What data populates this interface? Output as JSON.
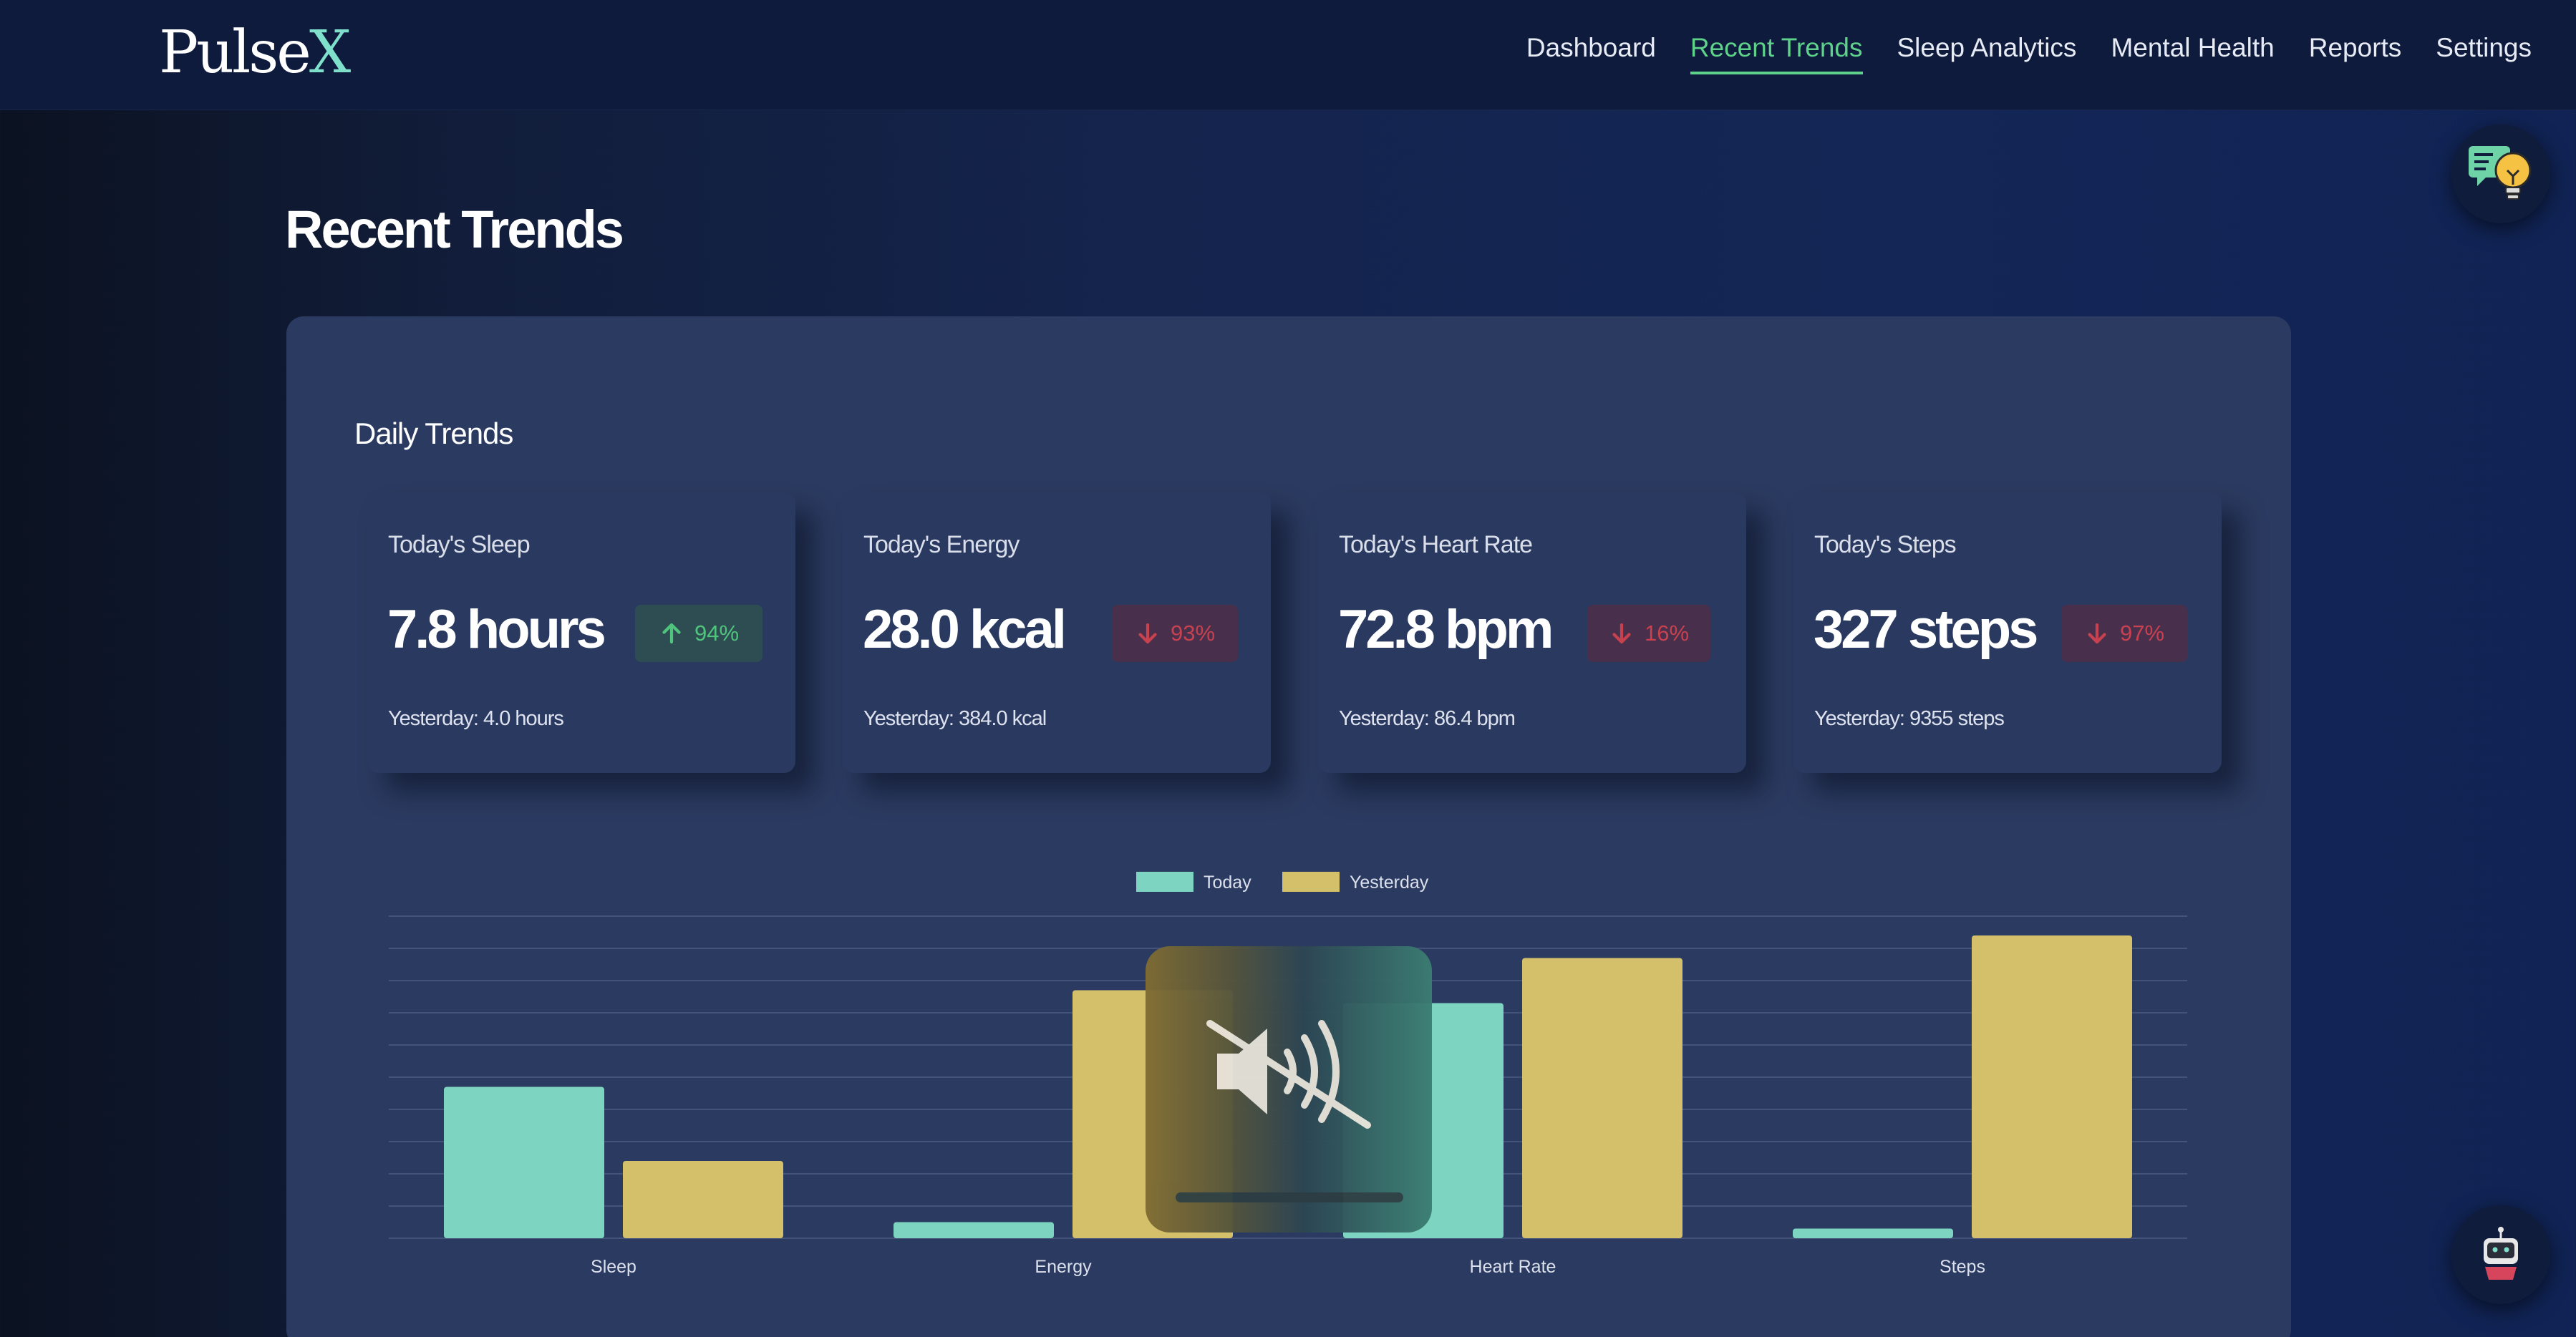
{
  "app": {
    "logo": {
      "main": "Pulse",
      "accent": "X"
    },
    "nav": [
      {
        "label": "Dashboard",
        "active": false
      },
      {
        "label": "Recent Trends",
        "active": true
      },
      {
        "label": "Sleep Analytics",
        "active": false
      },
      {
        "label": "Mental Health",
        "active": false
      },
      {
        "label": "Reports",
        "active": false
      },
      {
        "label": "Settings",
        "active": false
      }
    ]
  },
  "page": {
    "title": "Recent Trends",
    "section_title": "Daily Trends"
  },
  "cards": [
    {
      "label": "Today's Sleep",
      "value": "7.8 hours",
      "change": "94%",
      "direction": "up",
      "yesterday": "Yesterday: 4.0 hours"
    },
    {
      "label": "Today's Energy",
      "value": "28.0 kcal",
      "change": "93%",
      "direction": "down",
      "yesterday": "Yesterday: 384.0 kcal"
    },
    {
      "label": "Today's Heart Rate",
      "value": "72.8 bpm",
      "change": "16%",
      "direction": "down",
      "yesterday": "Yesterday: 86.4 bpm"
    },
    {
      "label": "Today's Steps",
      "value": "327 steps",
      "change": "97%",
      "direction": "down",
      "yesterday": "Yesterday: 9355 steps"
    }
  ],
  "chart_data": {
    "type": "bar",
    "title": "",
    "categories": [
      "Sleep",
      "Energy",
      "Heart Rate",
      "Steps"
    ],
    "series": [
      {
        "name": "Today",
        "color": "#7dd5c1",
        "values": [
          47,
          5,
          73,
          3
        ]
      },
      {
        "name": "Yesterday",
        "color": "#d4c06a",
        "values": [
          24,
          77,
          87,
          94
        ]
      }
    ],
    "ylim": [
      0,
      100
    ],
    "grid": true,
    "legend": "top-center",
    "xlabel": "",
    "ylabel": ""
  },
  "colors": {
    "accent": "#5ed18a",
    "today": "#7dd5c1",
    "yesterday": "#d4c06a",
    "up": "#4fc47c",
    "down": "#c8414f"
  },
  "icons": {
    "tips": "lightbulb-message-icon",
    "assistant": "robot-icon",
    "mute": "speaker-muted-icon",
    "arrow_up": "arrow-up-icon",
    "arrow_down": "arrow-down-icon"
  }
}
